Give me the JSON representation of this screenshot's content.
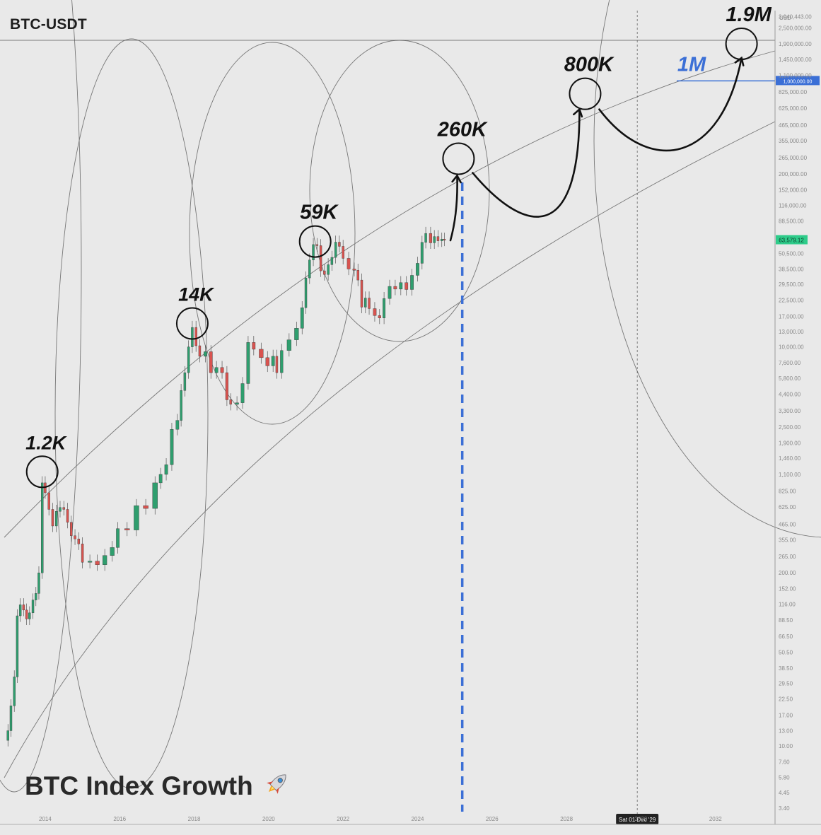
{
  "header": {
    "symbol": "BTC-USDT"
  },
  "caption": {
    "text": "BTC Index Growth",
    "icon": "rocket-icon"
  },
  "colors": {
    "background": "#e9e9e9",
    "candle_up": "#2f9e6e",
    "candle_down": "#d9534f",
    "annotation": "#111111",
    "highlight_blue": "#3b6fd6",
    "price_badge": "#2ecc8a"
  },
  "chart_data": {
    "type": "candlestick",
    "title": "BTC-USDT",
    "y_scale": "log",
    "y_unit": "USD",
    "x_ticks": [
      "2014",
      "2016",
      "2018",
      "2020",
      "2022",
      "2024",
      "2026",
      "2028",
      "2030",
      "2032"
    ],
    "x_range": [
      2012.9,
      2033.6
    ],
    "y_tick_labels": [
      "3,040,443.00",
      "2,500,000.00",
      "1,900,000.00",
      "1,450,000.00",
      "1,100,000.00",
      "825,000.00",
      "625,000.00",
      "465,000.00",
      "355,000.00",
      "265,000.00",
      "200,000.00",
      "152,000.00",
      "116,000.00",
      "88,500.00",
      "50,500.00",
      "38,500.00",
      "29,500.00",
      "22,500.00",
      "17,000.00",
      "13,000.00",
      "10,000.00",
      "7,600.00",
      "5,800.00",
      "4,400.00",
      "3,300.00",
      "2,500.00",
      "1,900.00",
      "1,460.00",
      "1,100.00",
      "825.00",
      "625.00",
      "465.00",
      "355.00",
      "265.00",
      "200.00",
      "152.00",
      "116.00",
      "88.50",
      "66.50",
      "50.50",
      "38.50",
      "29.50",
      "22.50",
      "17.00",
      "13.00",
      "10.00",
      "7.60",
      "5.80",
      "4.45",
      "3.40"
    ],
    "y_range": [
      3.2,
      3100000
    ],
    "price_series": [
      {
        "t": 2012.92,
        "v": 11
      },
      {
        "t": 2013.0,
        "v": 13
      },
      {
        "t": 2013.08,
        "v": 20
      },
      {
        "t": 2013.17,
        "v": 33
      },
      {
        "t": 2013.25,
        "v": 95
      },
      {
        "t": 2013.33,
        "v": 115
      },
      {
        "t": 2013.42,
        "v": 105
      },
      {
        "t": 2013.5,
        "v": 90
      },
      {
        "t": 2013.58,
        "v": 100
      },
      {
        "t": 2013.67,
        "v": 125
      },
      {
        "t": 2013.75,
        "v": 140
      },
      {
        "t": 2013.83,
        "v": 200
      },
      {
        "t": 2013.92,
        "v": 950
      },
      {
        "t": 2014.0,
        "v": 800
      },
      {
        "t": 2014.1,
        "v": 600
      },
      {
        "t": 2014.2,
        "v": 450
      },
      {
        "t": 2014.3,
        "v": 580
      },
      {
        "t": 2014.4,
        "v": 620
      },
      {
        "t": 2014.5,
        "v": 600
      },
      {
        "t": 2014.6,
        "v": 480
      },
      {
        "t": 2014.7,
        "v": 380
      },
      {
        "t": 2014.8,
        "v": 360
      },
      {
        "t": 2014.9,
        "v": 330
      },
      {
        "t": 2015.0,
        "v": 240
      },
      {
        "t": 2015.2,
        "v": 245
      },
      {
        "t": 2015.4,
        "v": 230
      },
      {
        "t": 2015.6,
        "v": 270
      },
      {
        "t": 2015.8,
        "v": 310
      },
      {
        "t": 2015.95,
        "v": 430
      },
      {
        "t": 2016.2,
        "v": 420
      },
      {
        "t": 2016.45,
        "v": 640
      },
      {
        "t": 2016.7,
        "v": 610
      },
      {
        "t": 2016.95,
        "v": 950
      },
      {
        "t": 2017.1,
        "v": 1100
      },
      {
        "t": 2017.25,
        "v": 1300
      },
      {
        "t": 2017.4,
        "v": 2400
      },
      {
        "t": 2017.55,
        "v": 2800
      },
      {
        "t": 2017.65,
        "v": 4700
      },
      {
        "t": 2017.75,
        "v": 6400
      },
      {
        "t": 2017.85,
        "v": 10000
      },
      {
        "t": 2017.95,
        "v": 14000
      },
      {
        "t": 2018.05,
        "v": 10200
      },
      {
        "t": 2018.15,
        "v": 8500
      },
      {
        "t": 2018.3,
        "v": 9200
      },
      {
        "t": 2018.45,
        "v": 6400
      },
      {
        "t": 2018.6,
        "v": 7000
      },
      {
        "t": 2018.75,
        "v": 6400
      },
      {
        "t": 2018.88,
        "v": 4000
      },
      {
        "t": 2018.98,
        "v": 3700
      },
      {
        "t": 2019.15,
        "v": 3800
      },
      {
        "t": 2019.3,
        "v": 5300
      },
      {
        "t": 2019.45,
        "v": 10800
      },
      {
        "t": 2019.6,
        "v": 9600
      },
      {
        "t": 2019.8,
        "v": 8300
      },
      {
        "t": 2019.97,
        "v": 7200
      },
      {
        "t": 2020.12,
        "v": 8500
      },
      {
        "t": 2020.22,
        "v": 6400
      },
      {
        "t": 2020.35,
        "v": 9400
      },
      {
        "t": 2020.55,
        "v": 11300
      },
      {
        "t": 2020.75,
        "v": 13800
      },
      {
        "t": 2020.9,
        "v": 19700
      },
      {
        "t": 2021.0,
        "v": 33000
      },
      {
        "t": 2021.1,
        "v": 45000
      },
      {
        "t": 2021.2,
        "v": 58800
      },
      {
        "t": 2021.3,
        "v": 57700
      },
      {
        "t": 2021.4,
        "v": 37300
      },
      {
        "t": 2021.5,
        "v": 35000
      },
      {
        "t": 2021.6,
        "v": 41500
      },
      {
        "t": 2021.7,
        "v": 47100
      },
      {
        "t": 2021.8,
        "v": 61300
      },
      {
        "t": 2021.9,
        "v": 57000
      },
      {
        "t": 2022.0,
        "v": 46300
      },
      {
        "t": 2022.15,
        "v": 38500
      },
      {
        "t": 2022.3,
        "v": 37700
      },
      {
        "t": 2022.4,
        "v": 31800
      },
      {
        "t": 2022.5,
        "v": 19900
      },
      {
        "t": 2022.6,
        "v": 23300
      },
      {
        "t": 2022.7,
        "v": 19400
      },
      {
        "t": 2022.85,
        "v": 17200
      },
      {
        "t": 2022.98,
        "v": 16500
      },
      {
        "t": 2023.1,
        "v": 23100
      },
      {
        "t": 2023.25,
        "v": 28500
      },
      {
        "t": 2023.4,
        "v": 27200
      },
      {
        "t": 2023.55,
        "v": 30400
      },
      {
        "t": 2023.7,
        "v": 27000
      },
      {
        "t": 2023.85,
        "v": 34500
      },
      {
        "t": 2024.0,
        "v": 42500
      },
      {
        "t": 2024.12,
        "v": 61100
      },
      {
        "t": 2024.22,
        "v": 71300
      },
      {
        "t": 2024.35,
        "v": 60600
      },
      {
        "t": 2024.45,
        "v": 67500
      },
      {
        "t": 2024.55,
        "v": 62700
      },
      {
        "t": 2024.65,
        "v": 64600
      },
      {
        "t": 2024.72,
        "v": 63579.12
      }
    ],
    "current_price": {
      "label": "63,579.12",
      "value": 63579.12
    },
    "peak_annotations": [
      {
        "label": "1.2K",
        "t": 2013.92,
        "v": 1150
      },
      {
        "label": "14K",
        "t": 2017.95,
        "v": 15000
      },
      {
        "label": "59K",
        "t": 2021.25,
        "v": 62000
      },
      {
        "label": "260K",
        "t": 2025.1,
        "v": 260000
      },
      {
        "label": "800K",
        "t": 2028.5,
        "v": 800000
      },
      {
        "label": "1.9M",
        "t": 2032.7,
        "v": 1900000
      }
    ],
    "level_line": {
      "label": "1M",
      "value": 1000000,
      "axis_label": "1,000,000.00"
    },
    "vertical_markers": [
      {
        "t": 2025.2,
        "style": "blue-dashed"
      },
      {
        "t": 2029.9,
        "style": "gray-dotted",
        "label": "Sat 01 Dec '29"
      }
    ]
  }
}
